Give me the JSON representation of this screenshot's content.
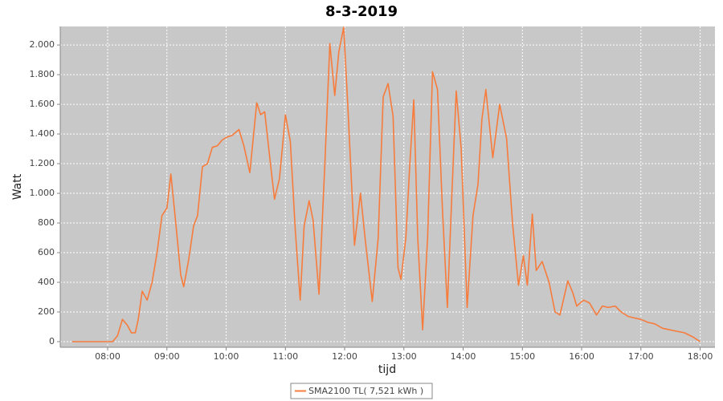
{
  "chart_data": {
    "type": "line",
    "title": "8-3-2019",
    "x_label": "tijd",
    "y_label": "Watt",
    "x": [
      "07:24",
      "08:05",
      "08:10",
      "08:15",
      "08:20",
      "08:24",
      "08:28",
      "08:31",
      "08:35",
      "08:40",
      "08:45",
      "08:50",
      "08:55",
      "09:00",
      "09:04",
      "09:09",
      "09:14",
      "09:17",
      "09:22",
      "09:27",
      "09:31",
      "09:36",
      "09:41",
      "09:46",
      "09:51",
      "09:56",
      "10:01",
      "10:06",
      "10:13",
      "10:18",
      "10:24",
      "10:31",
      "10:35",
      "10:39",
      "10:44",
      "10:49",
      "10:54",
      "11:00",
      "11:05",
      "11:10",
      "11:15",
      "11:19",
      "11:24",
      "11:28",
      "11:34",
      "11:40",
      "11:45",
      "11:50",
      "11:54",
      "11:59",
      "12:03",
      "12:10",
      "12:16",
      "12:21",
      "12:28",
      "12:34",
      "12:39",
      "12:44",
      "12:49",
      "12:54",
      "12:57",
      "13:02",
      "13:06",
      "13:10",
      "13:14",
      "13:19",
      "13:24",
      "13:29",
      "13:34",
      "13:39",
      "13:44",
      "13:48",
      "13:53",
      "13:58",
      "14:04",
      "14:10",
      "14:15",
      "14:19",
      "14:23",
      "14:30",
      "14:37",
      "14:44",
      "14:50",
      "14:56",
      "15:01",
      "15:05",
      "15:10",
      "15:14",
      "15:20",
      "15:27",
      "15:33",
      "15:38",
      "15:46",
      "15:51",
      "15:55",
      "16:02",
      "16:08",
      "16:15",
      "16:21",
      "16:27",
      "16:34",
      "16:40",
      "16:47",
      "16:53",
      "17:00",
      "17:07",
      "17:14",
      "17:22",
      "17:29",
      "17:36",
      "17:44",
      "17:53",
      "18:00"
    ],
    "series": [
      {
        "name": "SMA2100 TL( 7,521 kWh )",
        "color": "#f77c3c",
        "values": [
          0,
          0,
          40,
          150,
          110,
          60,
          60,
          150,
          340,
          280,
          400,
          600,
          850,
          900,
          1130,
          800,
          450,
          370,
          550,
          780,
          850,
          1180,
          1200,
          1310,
          1320,
          1360,
          1380,
          1390,
          1430,
          1320,
          1140,
          1610,
          1530,
          1550,
          1250,
          960,
          1100,
          1530,
          1350,
          750,
          280,
          780,
          950,
          820,
          320,
          1200,
          2010,
          1660,
          1950,
          2120,
          1620,
          650,
          1000,
          680,
          270,
          700,
          1650,
          1740,
          1520,
          500,
          420,
          700,
          1200,
          1630,
          700,
          80,
          700,
          1820,
          1700,
          900,
          230,
          900,
          1690,
          1300,
          230,
          850,
          1060,
          1500,
          1700,
          1240,
          1600,
          1370,
          800,
          380,
          580,
          380,
          860,
          480,
          540,
          400,
          200,
          180,
          410,
          330,
          240,
          280,
          260,
          180,
          240,
          230,
          240,
          200,
          170,
          160,
          150,
          130,
          120,
          90,
          80,
          70,
          60,
          30,
          0
        ]
      }
    ],
    "xlim": [
      "07:12",
      "18:15"
    ],
    "xticks": [
      "08:00",
      "09:00",
      "10:00",
      "11:00",
      "12:00",
      "13:00",
      "14:00",
      "15:00",
      "16:00",
      "17:00",
      "18:00"
    ],
    "ylim": [
      -38,
      2125
    ],
    "yticks": [
      0,
      200,
      400,
      600,
      800,
      {
        "value": 1000,
        "label": "1.000"
      },
      {
        "value": 1200,
        "label": "1.200"
      },
      {
        "value": 1400,
        "label": "1.400"
      },
      {
        "value": 1600,
        "label": "1.600"
      },
      {
        "value": 1800,
        "label": "1.800"
      },
      {
        "value": 2000,
        "label": "2.000"
      }
    ],
    "grid": true,
    "legend": "bottom"
  }
}
